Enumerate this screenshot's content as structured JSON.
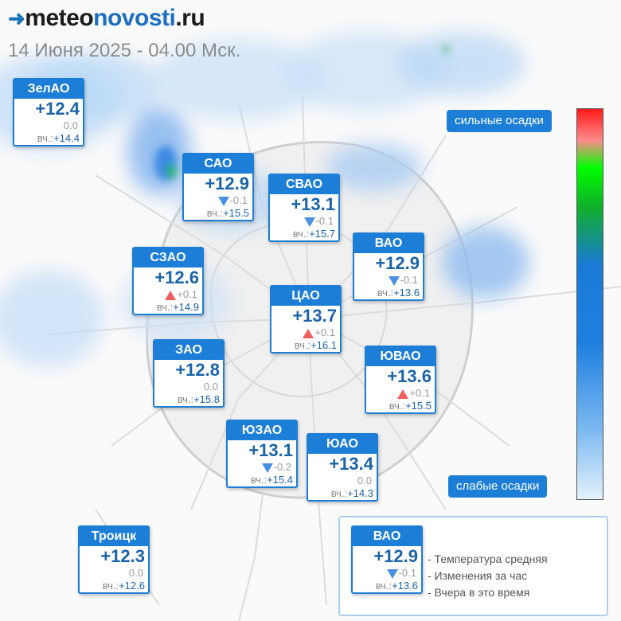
{
  "header": {
    "logo_part1": "meteo",
    "logo_part2": "novosti",
    "logo_part3": ".ru",
    "datetime": "14 Июня 2025 - 04.00 Мск."
  },
  "districts": [
    {
      "name": "ЗелАО",
      "temp": "+12.4",
      "change": "0.0",
      "direction": "none",
      "yesterday_label": "вч.:",
      "yesterday": "+14.4"
    },
    {
      "name": "САО",
      "temp": "+12.9",
      "change": "-0.1",
      "direction": "down",
      "yesterday_label": "вч.:",
      "yesterday": "+15.5"
    },
    {
      "name": "СВАО",
      "temp": "+13.1",
      "change": "-0.1",
      "direction": "down",
      "yesterday_label": "вч.:",
      "yesterday": "+15.7"
    },
    {
      "name": "ВАО",
      "temp": "+12.9",
      "change": "-0.1",
      "direction": "down",
      "yesterday_label": "вч.:",
      "yesterday": "+13.6"
    },
    {
      "name": "СЗАО",
      "temp": "+12.6",
      "change": "+0.1",
      "direction": "up",
      "yesterday_label": "вч.:",
      "yesterday": "+14.9"
    },
    {
      "name": "ЦАО",
      "temp": "+13.7",
      "change": "+0.1",
      "direction": "up",
      "yesterday_label": "вч.:",
      "yesterday": "+16.1"
    },
    {
      "name": "ЗАО",
      "temp": "+12.8",
      "change": "0.0",
      "direction": "none",
      "yesterday_label": "вч.:",
      "yesterday": "+15.8"
    },
    {
      "name": "ЮВАО",
      "temp": "+13.6",
      "change": "+0.1",
      "direction": "up",
      "yesterday_label": "вч.:",
      "yesterday": "+15.5"
    },
    {
      "name": "ЮЗАО",
      "temp": "+13.1",
      "change": "-0.2",
      "direction": "down",
      "yesterday_label": "вч.:",
      "yesterday": "+15.4"
    },
    {
      "name": "ЮАО",
      "temp": "+13.4",
      "change": "0.0",
      "direction": "none",
      "yesterday_label": "вч.:",
      "yesterday": "+14.3"
    },
    {
      "name": "Троицк",
      "temp": "+12.3",
      "change": "0.0",
      "direction": "none",
      "yesterday_label": "вч.:",
      "yesterday": "+12.6"
    }
  ],
  "scale": {
    "heavy": "сильные осадки",
    "light": "слабые осадки"
  },
  "legend": {
    "sample": {
      "name": "ВАО",
      "temp": "+12.9",
      "change": "-0.1",
      "direction": "down",
      "yesterday_label": "вч.:",
      "yesterday": "+13.6"
    },
    "items": [
      "- Температура средняя",
      "- Изменения за час",
      "- Вчера в это время"
    ]
  },
  "colors": {
    "accent": "#1c7ed6",
    "temp_text": "#1a63a8",
    "arrow_down": "#4a90e2",
    "arrow_up": "#f06060",
    "datetime_text": "#8c8c8c"
  }
}
